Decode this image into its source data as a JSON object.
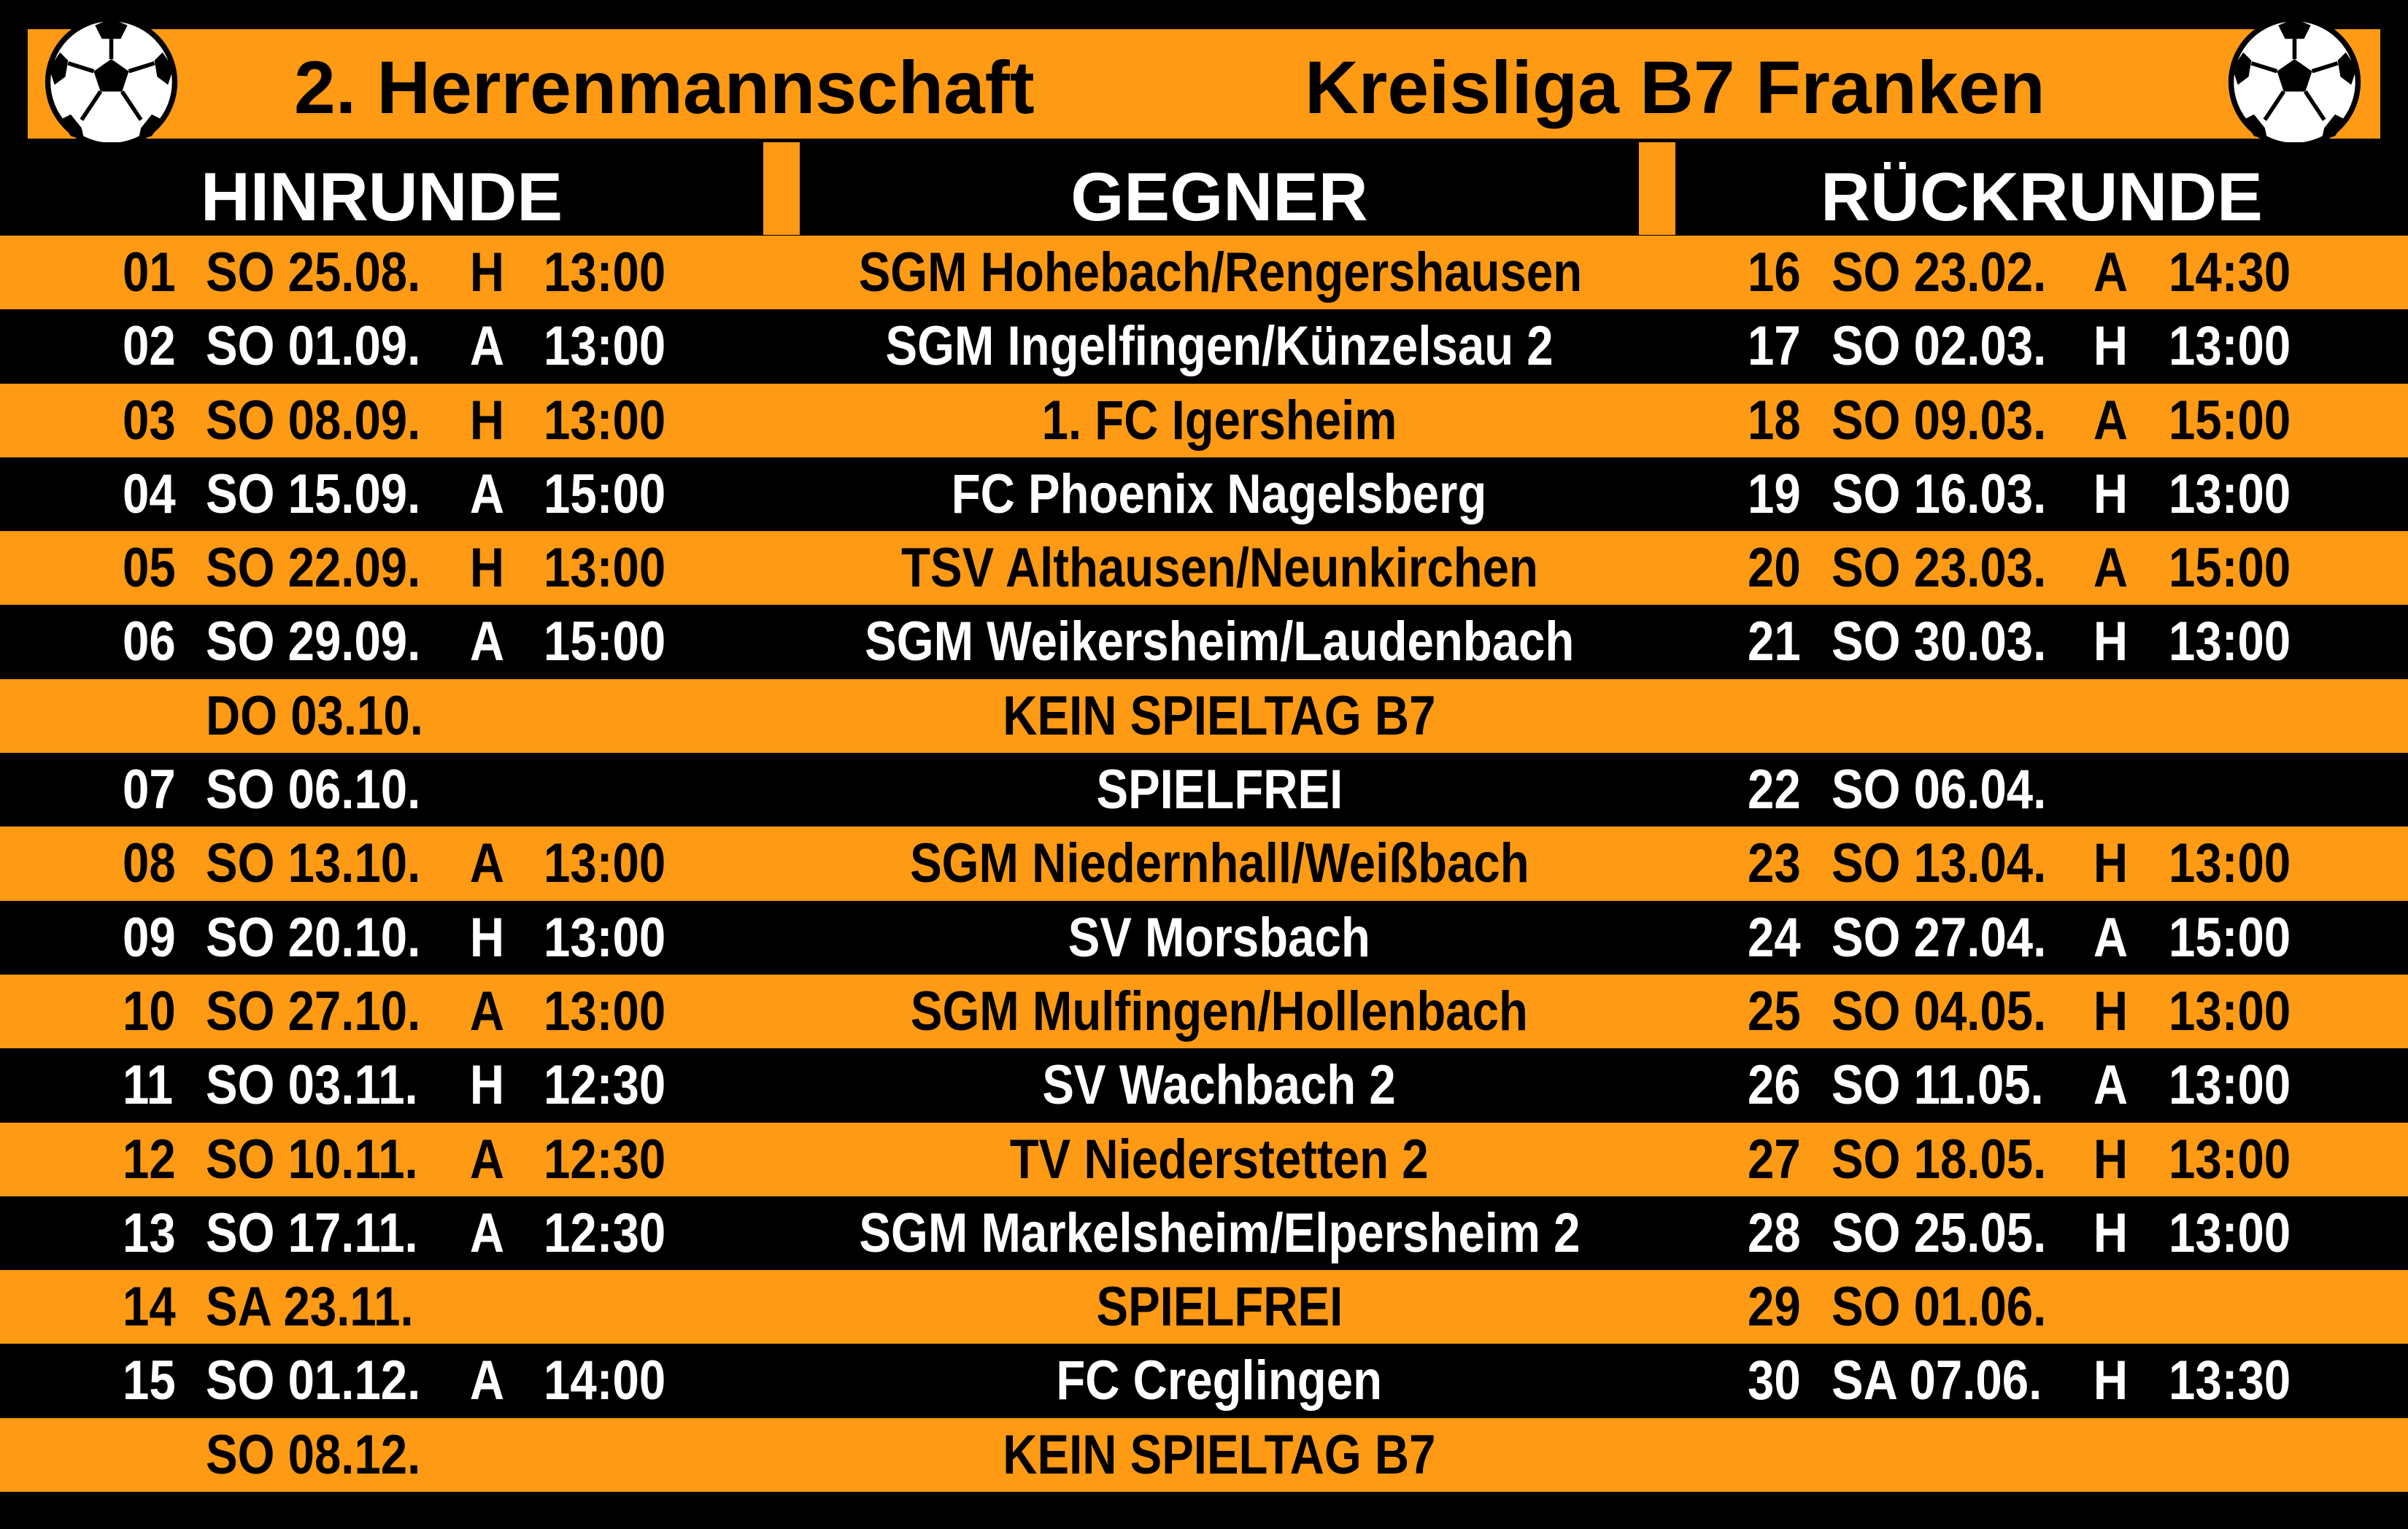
{
  "title": {
    "team": "2. Herrenmannschaft",
    "league": "Kreisliga B7 Franken"
  },
  "headers": {
    "hinrunde": "HINRUNDE",
    "gegner": "GEGNER",
    "rueckrunde": "RÜCKRUNDE"
  },
  "icons": {
    "left": "soccer-ball-icon",
    "right": "soccer-ball-icon"
  },
  "colors": {
    "orange": "#ff9a14",
    "black": "#000000",
    "white": "#ffffff"
  },
  "rows": [
    {
      "style": "orange",
      "num": "01",
      "date": "SO 25.08.",
      "ha": "H",
      "time": "13:00",
      "opponent": "SGM Hohebach/Rengershausen",
      "r_num": "16",
      "r_date": "SO 23.02.",
      "r_ha": "A",
      "r_time": "14:30"
    },
    {
      "style": "black",
      "num": "02",
      "date": "SO 01.09.",
      "ha": "A",
      "time": "13:00",
      "opponent": "SGM Ingelfingen/Künzelsau 2",
      "r_num": "17",
      "r_date": "SO 02.03.",
      "r_ha": "H",
      "r_time": "13:00"
    },
    {
      "style": "orange",
      "num": "03",
      "date": "SO 08.09.",
      "ha": "H",
      "time": "13:00",
      "opponent": "1. FC Igersheim",
      "r_num": "18",
      "r_date": "SO 09.03.",
      "r_ha": "A",
      "r_time": "15:00"
    },
    {
      "style": "black",
      "num": "04",
      "date": "SO 15.09.",
      "ha": "A",
      "time": "15:00",
      "opponent": "FC Phoenix Nagelsberg",
      "r_num": "19",
      "r_date": "SO 16.03.",
      "r_ha": "H",
      "r_time": "13:00"
    },
    {
      "style": "orange",
      "num": "05",
      "date": "SO 22.09.",
      "ha": "H",
      "time": "13:00",
      "opponent": "TSV Althausen/Neunkirchen",
      "r_num": "20",
      "r_date": "SO 23.03.",
      "r_ha": "A",
      "r_time": "15:00"
    },
    {
      "style": "black",
      "num": "06",
      "date": "SO 29.09.",
      "ha": "A",
      "time": "15:00",
      "opponent": "SGM Weikersheim/Laudenbach",
      "r_num": "21",
      "r_date": "SO 30.03.",
      "r_ha": "H",
      "r_time": "13:00"
    },
    {
      "style": "orange",
      "num": "",
      "date": "DO 03.10.",
      "ha": "",
      "time": "",
      "opponent": "KEIN SPIELTAG B7",
      "r_num": "",
      "r_date": "",
      "r_ha": "",
      "r_time": ""
    },
    {
      "style": "black",
      "num": "07",
      "date": "SO 06.10.",
      "ha": "",
      "time": "",
      "opponent": "SPIELFREI",
      "r_num": "22",
      "r_date": "SO 06.04.",
      "r_ha": "",
      "r_time": ""
    },
    {
      "style": "orange",
      "num": "08",
      "date": "SO 13.10.",
      "ha": "A",
      "time": "13:00",
      "opponent": "SGM Niedernhall/Weißbach",
      "r_num": "23",
      "r_date": "SO 13.04.",
      "r_ha": "H",
      "r_time": "13:00"
    },
    {
      "style": "black",
      "num": "09",
      "date": "SO 20.10.",
      "ha": "H",
      "time": "13:00",
      "opponent": "SV Morsbach",
      "r_num": "24",
      "r_date": "SO 27.04.",
      "r_ha": "A",
      "r_time": "15:00"
    },
    {
      "style": "orange",
      "num": "10",
      "date": "SO 27.10.",
      "ha": "A",
      "time": "13:00",
      "opponent": "SGM Mulfingen/Hollenbach",
      "r_num": "25",
      "r_date": "SO 04.05.",
      "r_ha": "H",
      "r_time": "13:00"
    },
    {
      "style": "black",
      "num": "11",
      "date": "SO 03.11.",
      "ha": "H",
      "time": "12:30",
      "opponent": "SV Wachbach 2",
      "r_num": "26",
      "r_date": "SO 11.05.",
      "r_ha": "A",
      "r_time": "13:00"
    },
    {
      "style": "orange",
      "num": "12",
      "date": "SO 10.11.",
      "ha": "A",
      "time": "12:30",
      "opponent": "TV Niederstetten 2",
      "r_num": "27",
      "r_date": "SO 18.05.",
      "r_ha": "H",
      "r_time": "13:00"
    },
    {
      "style": "black",
      "num": "13",
      "date": "SO 17.11.",
      "ha": "A",
      "time": "12:30",
      "opponent": "SGM Markelsheim/Elpersheim 2",
      "r_num": "28",
      "r_date": "SO 25.05.",
      "r_ha": "H",
      "r_time": "13:00"
    },
    {
      "style": "orange",
      "num": "14",
      "date": "SA 23.11.",
      "ha": "",
      "time": "",
      "opponent": "SPIELFREI",
      "r_num": "29",
      "r_date": "SO 01.06.",
      "r_ha": "",
      "r_time": ""
    },
    {
      "style": "black",
      "num": "15",
      "date": "SO 01.12.",
      "ha": "A",
      "time": "14:00",
      "opponent": "FC Creglingen",
      "r_num": "30",
      "r_date": "SA 07.06.",
      "r_ha": "H",
      "r_time": "13:30"
    },
    {
      "style": "orange",
      "num": "",
      "date": "SO 08.12.",
      "ha": "",
      "time": "",
      "opponent": "KEIN SPIELTAG B7",
      "r_num": "",
      "r_date": "",
      "r_ha": "",
      "r_time": ""
    }
  ]
}
